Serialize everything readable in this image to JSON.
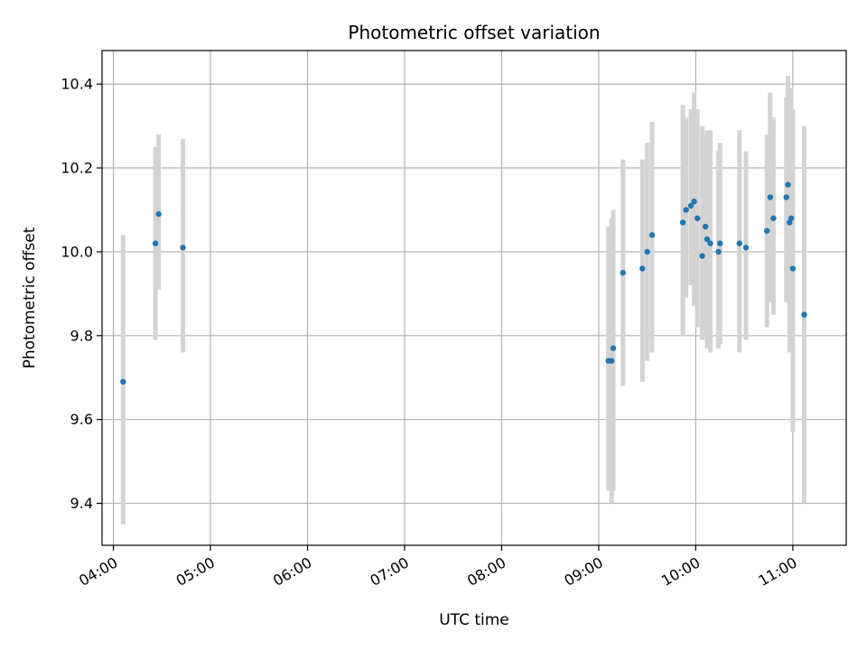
{
  "chart_data": {
    "type": "scatter",
    "title": "Photometric offset variation",
    "xlabel": "UTC time",
    "ylabel": "Photometric offset",
    "xlim": [
      "03:53",
      "11:33"
    ],
    "ylim": [
      9.3,
      10.48
    ],
    "x_ticks": [
      "04:00",
      "05:00",
      "06:00",
      "07:00",
      "08:00",
      "09:00",
      "10:00",
      "11:00"
    ],
    "y_ticks": [
      "9.4",
      "9.6",
      "9.8",
      "10.0",
      "10.2",
      "10.4"
    ],
    "grid": true,
    "colors": {
      "points": "#1f77b4",
      "errorbars": "#d3d3d3",
      "grid": "#b0b0b0"
    },
    "points": [
      {
        "x": "04:06",
        "y": 9.69,
        "err_low": 9.35,
        "err_high": 10.04
      },
      {
        "x": "04:26",
        "y": 10.02,
        "err_low": 9.79,
        "err_high": 10.25
      },
      {
        "x": "04:28",
        "y": 10.09,
        "err_low": 9.91,
        "err_high": 10.28
      },
      {
        "x": "04:43",
        "y": 10.01,
        "err_low": 9.76,
        "err_high": 10.27
      },
      {
        "x": "09:06",
        "y": 9.74,
        "err_low": 9.43,
        "err_high": 10.06
      },
      {
        "x": "09:08",
        "y": 9.74,
        "err_low": 9.4,
        "err_high": 10.08
      },
      {
        "x": "09:09",
        "y": 9.77,
        "err_low": 9.43,
        "err_high": 10.1
      },
      {
        "x": "09:15",
        "y": 9.95,
        "err_low": 9.68,
        "err_high": 10.22
      },
      {
        "x": "09:27",
        "y": 9.96,
        "err_low": 9.69,
        "err_high": 10.22
      },
      {
        "x": "09:30",
        "y": 10.0,
        "err_low": 9.74,
        "err_high": 10.26
      },
      {
        "x": "09:33",
        "y": 10.04,
        "err_low": 9.76,
        "err_high": 10.31
      },
      {
        "x": "09:52",
        "y": 10.07,
        "err_low": 9.8,
        "err_high": 10.35
      },
      {
        "x": "09:54",
        "y": 10.1,
        "err_low": 9.89,
        "err_high": 10.32
      },
      {
        "x": "09:57",
        "y": 10.11,
        "err_low": 9.92,
        "err_high": 10.34
      },
      {
        "x": "09:59",
        "y": 10.12,
        "err_low": 9.87,
        "err_high": 10.38
      },
      {
        "x": "10:01",
        "y": 10.08,
        "err_low": 9.82,
        "err_high": 10.34
      },
      {
        "x": "10:04",
        "y": 9.99,
        "err_low": 9.79,
        "err_high": 10.3
      },
      {
        "x": "10:06",
        "y": 10.06,
        "err_low": 9.8,
        "err_high": 10.28
      },
      {
        "x": "10:07",
        "y": 10.03,
        "err_low": 9.77,
        "err_high": 10.29
      },
      {
        "x": "10:09",
        "y": 10.02,
        "err_low": 9.76,
        "err_high": 10.29
      },
      {
        "x": "10:14",
        "y": 10.0,
        "err_low": 9.77,
        "err_high": 10.24
      },
      {
        "x": "10:15",
        "y": 10.02,
        "err_low": 9.78,
        "err_high": 10.26
      },
      {
        "x": "10:27",
        "y": 10.02,
        "err_low": 9.76,
        "err_high": 10.29
      },
      {
        "x": "10:31",
        "y": 10.01,
        "err_low": 9.79,
        "err_high": 10.24
      },
      {
        "x": "10:44",
        "y": 10.05,
        "err_low": 9.82,
        "err_high": 10.28
      },
      {
        "x": "10:46",
        "y": 10.13,
        "err_low": 9.88,
        "err_high": 10.38
      },
      {
        "x": "10:48",
        "y": 10.08,
        "err_low": 9.85,
        "err_high": 10.32
      },
      {
        "x": "10:56",
        "y": 10.13,
        "err_low": 9.88,
        "err_high": 10.37
      },
      {
        "x": "10:57",
        "y": 10.16,
        "err_low": 9.9,
        "err_high": 10.42
      },
      {
        "x": "10:58",
        "y": 10.07,
        "err_low": 9.76,
        "err_high": 10.38
      },
      {
        "x": "10:59",
        "y": 10.08,
        "err_low": 9.8,
        "err_high": 10.39
      },
      {
        "x": "11:00",
        "y": 9.96,
        "err_low": 9.57,
        "err_high": 10.34
      },
      {
        "x": "11:07",
        "y": 9.85,
        "err_low": 9.4,
        "err_high": 10.3
      }
    ]
  }
}
